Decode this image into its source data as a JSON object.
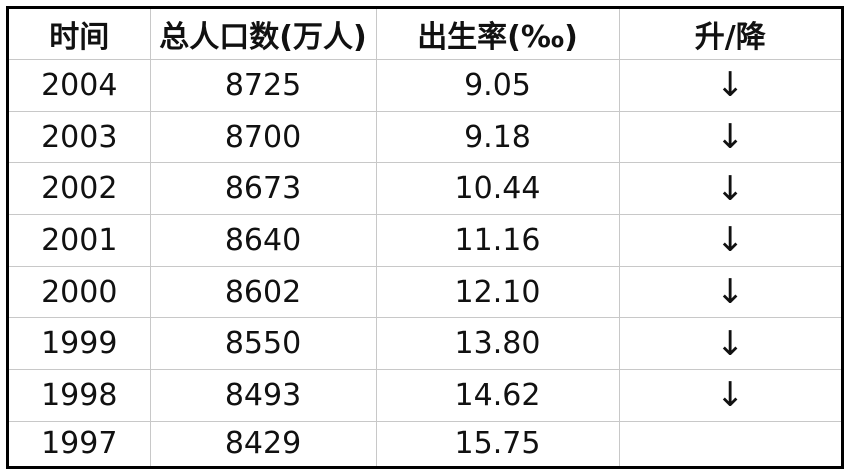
{
  "chart_data": {
    "type": "table",
    "columns": [
      "时间",
      "总人口数(万人)",
      "出生率(‰)",
      "升/降"
    ],
    "rows": [
      {
        "year": "2004",
        "population": "8725",
        "birth_rate": "9.05",
        "trend": "↓"
      },
      {
        "year": "2003",
        "population": "8700",
        "birth_rate": "9.18",
        "trend": "↓"
      },
      {
        "year": "2002",
        "population": "8673",
        "birth_rate": "10.44",
        "trend": "↓"
      },
      {
        "year": "2001",
        "population": "8640",
        "birth_rate": "11.16",
        "trend": "↓"
      },
      {
        "year": "2000",
        "population": "8602",
        "birth_rate": "12.10",
        "trend": "↓"
      },
      {
        "year": "1999",
        "population": "8550",
        "birth_rate": "13.80",
        "trend": "↓"
      },
      {
        "year": "1998",
        "population": "8493",
        "birth_rate": "14.62",
        "trend": "↓"
      },
      {
        "year": "1997",
        "population": "8429",
        "birth_rate": "15.75",
        "trend": ""
      }
    ]
  }
}
